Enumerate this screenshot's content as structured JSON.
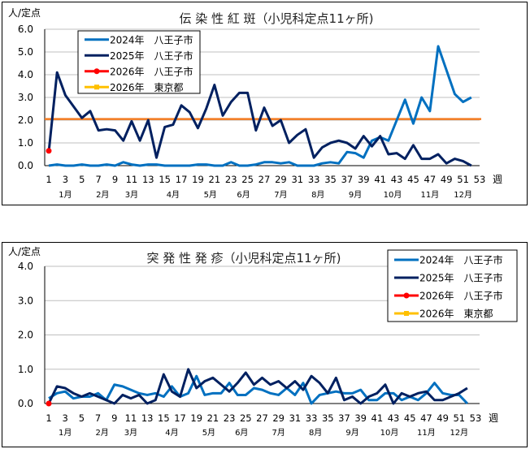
{
  "chart_data": [
    {
      "type": "line",
      "title": "伝 染 性 紅 斑（小児科定点11ヶ所)",
      "ylabel": "人/定点",
      "xlabel": "週",
      "ylim": [
        0,
        6
      ],
      "yticks": [
        "0.0",
        "1.0",
        "2.0",
        "3.0",
        "4.0",
        "5.0",
        "6.0"
      ],
      "xticks": [
        1,
        3,
        5,
        7,
        9,
        11,
        13,
        15,
        17,
        19,
        21,
        23,
        25,
        27,
        29,
        31,
        33,
        35,
        37,
        39,
        41,
        43,
        45,
        47,
        49,
        51,
        53
      ],
      "months": [
        {
          "label": "1月",
          "week": 3
        },
        {
          "label": "2月",
          "week": 7.5
        },
        {
          "label": "3月",
          "week": 11
        },
        {
          "label": "4月",
          "week": 16
        },
        {
          "label": "5月",
          "week": 20.5
        },
        {
          "label": "6月",
          "week": 24.5
        },
        {
          "label": "7月",
          "week": 29
        },
        {
          "label": "8月",
          "week": 33.5
        },
        {
          "label": "9月",
          "week": 38
        },
        {
          "label": "10月",
          "week": 42.5
        },
        {
          "label": "11月",
          "week": 47
        },
        {
          "label": "12月",
          "week": 51
        }
      ],
      "grid": true,
      "legend": "top-left",
      "series": [
        {
          "name": "2024年　八王子市",
          "color": "#0070C0",
          "values": [
            0,
            0.05,
            0,
            0,
            0.05,
            0,
            0,
            0.05,
            0,
            0.15,
            0.05,
            0,
            0.05,
            0.05,
            0,
            0,
            0,
            0,
            0.05,
            0.05,
            0,
            0,
            0.15,
            0,
            0,
            0.05,
            0.15,
            0.15,
            0.1,
            0.15,
            0,
            0,
            0,
            0.1,
            0.15,
            0.1,
            0.6,
            0.55,
            0.35,
            1.1,
            1.25,
            1.1,
            2.0,
            2.9,
            1.85,
            3.0,
            2.4,
            5.25,
            4.2,
            3.15,
            2.8,
            3.0
          ]
        },
        {
          "name": "2025年　八王子市",
          "color": "#002060",
          "values": [
            0.6,
            4.1,
            3.1,
            2.6,
            2.1,
            2.4,
            1.55,
            1.6,
            1.55,
            1.1,
            1.95,
            1.1,
            2.0,
            0.35,
            1.7,
            1.8,
            2.65,
            2.35,
            1.65,
            2.5,
            3.55,
            2.2,
            2.8,
            3.2,
            3.2,
            1.55,
            2.55,
            1.75,
            2.0,
            1.0,
            1.35,
            1.6,
            0.35,
            0.8,
            1.0,
            1.1,
            1.0,
            0.75,
            1.3,
            0.85,
            1.3,
            0.5,
            0.55,
            0.3,
            0.9,
            0.3,
            0.3,
            0.5,
            0.1,
            0.3,
            0.2,
            0.0
          ]
        },
        {
          "name": "2026年　八王子市",
          "color": "#FF0000",
          "marker": "circle",
          "values": [
            0.65
          ]
        },
        {
          "name": "2026年　東京都",
          "color": "#FFC000",
          "marker": "square",
          "values": []
        }
      ],
      "reference_line": {
        "value": 2.05,
        "color": "#F47B20"
      }
    },
    {
      "type": "line",
      "title": "突 発 性 発 疹（小児科定点11ヶ所)",
      "ylabel": "人/定点",
      "xlabel": "週",
      "ylim": [
        0,
        4
      ],
      "yticks": [
        "0.0",
        "1.0",
        "2.0",
        "3.0",
        "4.0"
      ],
      "xticks": [
        1,
        3,
        5,
        7,
        9,
        11,
        13,
        15,
        17,
        19,
        21,
        23,
        25,
        27,
        29,
        31,
        33,
        35,
        37,
        39,
        41,
        43,
        45,
        47,
        49,
        51,
        53
      ],
      "months": [
        {
          "label": "1月",
          "week": 3
        },
        {
          "label": "2月",
          "week": 7.5
        },
        {
          "label": "3月",
          "week": 11
        },
        {
          "label": "4月",
          "week": 16
        },
        {
          "label": "5月",
          "week": 20.5
        },
        {
          "label": "6月",
          "week": 24.5
        },
        {
          "label": "7月",
          "week": 29
        },
        {
          "label": "8月",
          "week": 33.5
        },
        {
          "label": "9月",
          "week": 38
        },
        {
          "label": "10月",
          "week": 42.5
        },
        {
          "label": "11月",
          "week": 47
        },
        {
          "label": "12月",
          "week": 51
        }
      ],
      "grid": true,
      "legend": "top-right",
      "series": [
        {
          "name": "2024年　八王子市",
          "color": "#0070C0",
          "values": [
            0.15,
            0.3,
            0.35,
            0.15,
            0.2,
            0.2,
            0.3,
            0.1,
            0.55,
            0.5,
            0.4,
            0.3,
            0.25,
            0.3,
            0.2,
            0.5,
            0.2,
            0.3,
            0.8,
            0.25,
            0.3,
            0.3,
            0.6,
            0.25,
            0.25,
            0.45,
            0.4,
            0.3,
            0.25,
            0.45,
            0.25,
            0.6,
            0.0,
            0.25,
            0.3,
            0.35,
            0.3,
            0.3,
            0.4,
            0.1,
            0.1,
            0.3,
            0.3,
            0.1,
            0.2,
            0.1,
            0.3,
            0.6,
            0.3,
            0.25,
            0.25,
            0.0
          ]
        },
        {
          "name": "2025年　八王子市",
          "color": "#002060",
          "values": [
            0.0,
            0.5,
            0.45,
            0.3,
            0.2,
            0.3,
            0.2,
            0.1,
            0.0,
            0.25,
            0.15,
            0.25,
            0.0,
            0.1,
            0.85,
            0.35,
            0.2,
            1.0,
            0.45,
            0.65,
            0.75,
            0.55,
            0.35,
            0.6,
            0.9,
            0.55,
            0.75,
            0.55,
            0.65,
            0.45,
            0.65,
            0.4,
            0.8,
            0.6,
            0.3,
            0.75,
            0.1,
            0.2,
            0.0,
            0.2,
            0.3,
            0.55,
            0.0,
            0.3,
            0.2,
            0.3,
            0.35,
            0.1,
            0.1,
            0.2,
            0.3,
            0.45
          ]
        },
        {
          "name": "2026年　八王子市",
          "color": "#FF0000",
          "marker": "circle",
          "values": [
            0.0
          ]
        },
        {
          "name": "2026年　東京都",
          "color": "#FFC000",
          "marker": "square",
          "values": []
        }
      ]
    }
  ]
}
